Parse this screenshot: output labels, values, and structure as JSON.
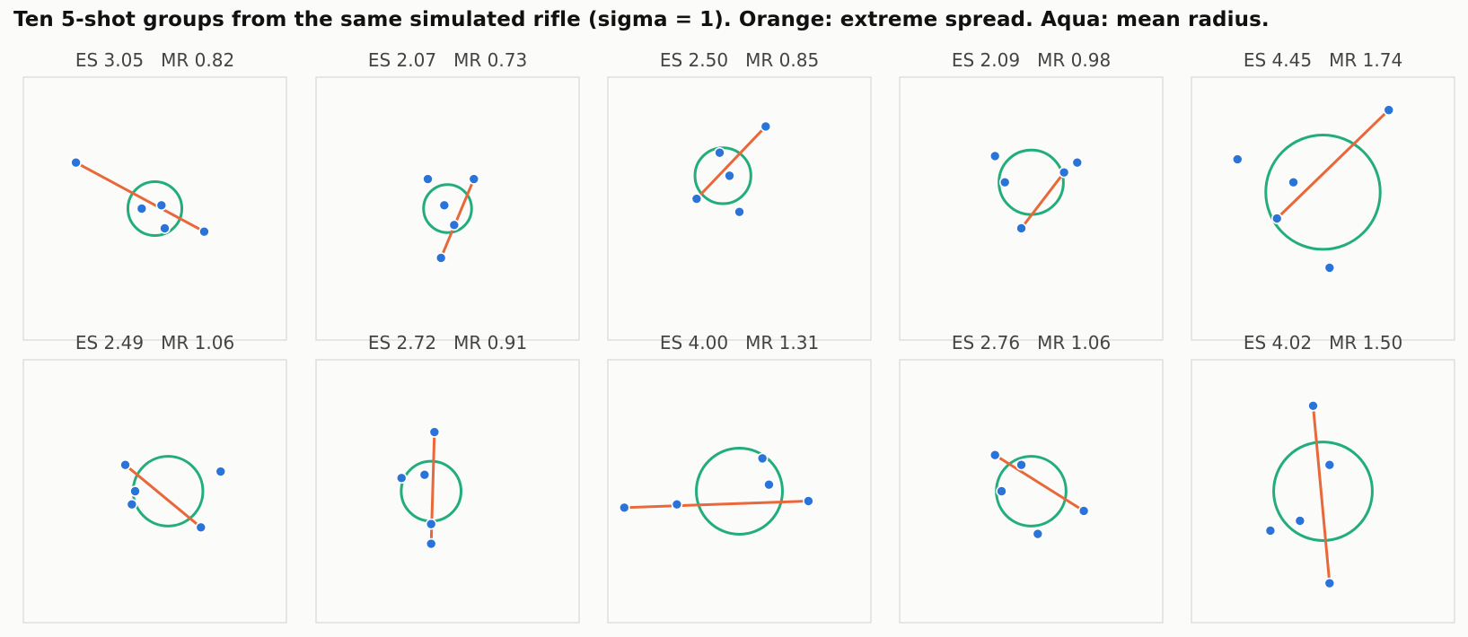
{
  "title": "Ten 5-shot groups from the same simulated rifle (sigma = 1). Orange: extreme spread. Aqua: mean radius.",
  "colors": {
    "extreme_spread": "#e8683a",
    "mean_radius": "#22ad7c",
    "shot": "#2a73d8",
    "panel_border": "#d9d9d9",
    "background": "#fbfbfa"
  },
  "chart_data": [
    {
      "type": "scatter",
      "title": "ES 3.05   MR 0.82",
      "es": 3.05,
      "mr": 0.82,
      "xlim": [
        -4,
        4
      ],
      "ylim": [
        -4,
        4
      ],
      "shots": [
        [
          -2.4,
          1.4
        ],
        [
          -0.4,
          0.0
        ],
        [
          0.2,
          0.1
        ],
        [
          0.3,
          -0.6
        ],
        [
          1.5,
          -0.7
        ]
      ],
      "center": [
        0.0,
        0.0
      ],
      "es_pair": [
        0,
        4
      ]
    },
    {
      "type": "scatter",
      "title": "ES 2.07   MR 0.73",
      "es": 2.07,
      "mr": 0.73,
      "xlim": [
        -4,
        4
      ],
      "ylim": [
        -4,
        4
      ],
      "shots": [
        [
          -0.6,
          0.9
        ],
        [
          0.8,
          0.9
        ],
        [
          -0.1,
          0.1
        ],
        [
          0.2,
          -0.5
        ],
        [
          -0.2,
          -1.5
        ]
      ],
      "center": [
        0.0,
        0.0
      ],
      "es_pair": [
        1,
        4
      ]
    },
    {
      "type": "scatter",
      "title": "ES 2.50   MR 0.85",
      "es": 2.5,
      "mr": 0.85,
      "xlim": [
        -4,
        4
      ],
      "ylim": [
        -4,
        4
      ],
      "shots": [
        [
          -0.6,
          1.7
        ],
        [
          -0.3,
          1.0
        ],
        [
          -1.3,
          0.3
        ],
        [
          0.0,
          -0.1
        ],
        [
          0.8,
          2.5
        ]
      ],
      "center": [
        -0.5,
        1.0
      ],
      "es_pair": [
        2,
        4
      ]
    },
    {
      "type": "scatter",
      "title": "ES 2.09   MR 0.98",
      "es": 2.09,
      "mr": 0.98,
      "xlim": [
        -4,
        4
      ],
      "ylim": [
        -4,
        4
      ],
      "shots": [
        [
          -1.1,
          1.6
        ],
        [
          -0.8,
          0.8
        ],
        [
          1.0,
          1.1
        ],
        [
          1.4,
          1.4
        ],
        [
          -0.3,
          -0.6
        ]
      ],
      "center": [
        0.0,
        0.8
      ],
      "es_pair": [
        2,
        4
      ]
    },
    {
      "type": "scatter",
      "title": "ES 4.45   MR 1.74",
      "es": 4.45,
      "mr": 1.74,
      "xlim": [
        -4,
        4
      ],
      "ylim": [
        -4,
        4
      ],
      "shots": [
        [
          -2.6,
          1.5
        ],
        [
          -0.9,
          0.8
        ],
        [
          -1.4,
          -0.3
        ],
        [
          2.0,
          3.0
        ],
        [
          0.2,
          -1.8
        ]
      ],
      "center": [
        0.0,
        0.5
      ],
      "es_pair": [
        2,
        3
      ]
    },
    {
      "type": "scatter",
      "title": "ES 2.49   MR 1.06",
      "es": 2.49,
      "mr": 1.06,
      "xlim": [
        -4,
        4
      ],
      "ylim": [
        -4,
        4
      ],
      "shots": [
        [
          -0.9,
          0.8
        ],
        [
          -0.6,
          0.0
        ],
        [
          -0.7,
          -0.4
        ],
        [
          2.0,
          0.6
        ],
        [
          1.4,
          -1.1
        ]
      ],
      "center": [
        0.4,
        0.0
      ],
      "es_pair": [
        0,
        4
      ]
    },
    {
      "type": "scatter",
      "title": "ES 2.72   MR 0.91",
      "es": 2.72,
      "mr": 0.91,
      "xlim": [
        -4,
        4
      ],
      "ylim": [
        -4,
        4
      ],
      "shots": [
        [
          -1.4,
          0.4
        ],
        [
          -0.7,
          0.5
        ],
        [
          -0.4,
          1.8
        ],
        [
          -0.5,
          -1.0
        ],
        [
          -0.5,
          -1.6
        ]
      ],
      "center": [
        -0.5,
        0.0
      ],
      "es_pair": [
        2,
        4
      ]
    },
    {
      "type": "scatter",
      "title": "ES 4.00   MR 1.31",
      "es": 4.0,
      "mr": 1.31,
      "xlim": [
        -4,
        4
      ],
      "ylim": [
        -4,
        4
      ],
      "shots": [
        [
          0.7,
          1.0
        ],
        [
          0.9,
          0.2
        ],
        [
          -1.9,
          -0.4
        ],
        [
          2.1,
          -0.3
        ],
        [
          -3.5,
          -0.5
        ]
      ],
      "center": [
        0.0,
        0.0
      ],
      "es_pair": [
        3,
        4
      ]
    },
    {
      "type": "scatter",
      "title": "ES 2.76   MR 1.06",
      "es": 2.76,
      "mr": 1.06,
      "xlim": [
        -4,
        4
      ],
      "ylim": [
        -4,
        4
      ],
      "shots": [
        [
          -0.3,
          0.8
        ],
        [
          -1.1,
          1.1
        ],
        [
          -0.9,
          0.0
        ],
        [
          0.2,
          -1.3
        ],
        [
          1.6,
          -0.6
        ]
      ],
      "center": [
        0.0,
        0.0
      ],
      "es_pair": [
        1,
        4
      ]
    },
    {
      "type": "scatter",
      "title": "ES 4.02   MR 1.50",
      "es": 4.02,
      "mr": 1.5,
      "xlim": [
        -4,
        4
      ],
      "ylim": [
        -4,
        4
      ],
      "shots": [
        [
          -0.3,
          2.6
        ],
        [
          0.2,
          0.8
        ],
        [
          -0.7,
          -0.9
        ],
        [
          -1.6,
          -1.2
        ],
        [
          0.2,
          -2.8
        ]
      ],
      "center": [
        0.0,
        0.0
      ],
      "es_pair": [
        0,
        4
      ]
    }
  ]
}
